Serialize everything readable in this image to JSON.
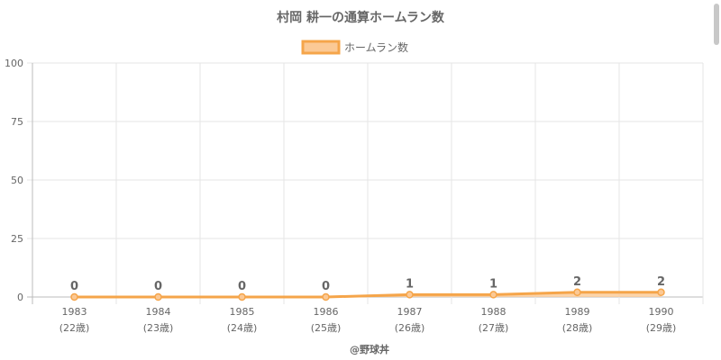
{
  "chart_data": {
    "type": "area",
    "title": "村岡 耕一の通算ホームラン数",
    "categories": [
      "1983",
      "1984",
      "1985",
      "1986",
      "1987",
      "1988",
      "1989",
      "1990"
    ],
    "sublabels": [
      "(22歳)",
      "(23歳)",
      "(24歳)",
      "(25歳)",
      "(26歳)",
      "(27歳)",
      "(28歳)",
      "(29歳)"
    ],
    "series": [
      {
        "name": "ホームラン数",
        "values": [
          0,
          0,
          0,
          0,
          1,
          1,
          2,
          2
        ]
      }
    ],
    "ylim": [
      0,
      100
    ],
    "yticks": [
      0,
      25,
      50,
      75,
      100
    ],
    "grid": true,
    "legend": "top-center",
    "data_labels": true,
    "line_color": "#f5a54a",
    "fill_color": "#fbc995",
    "xlabel": "",
    "ylabel": ""
  },
  "footer": "@野球丼"
}
